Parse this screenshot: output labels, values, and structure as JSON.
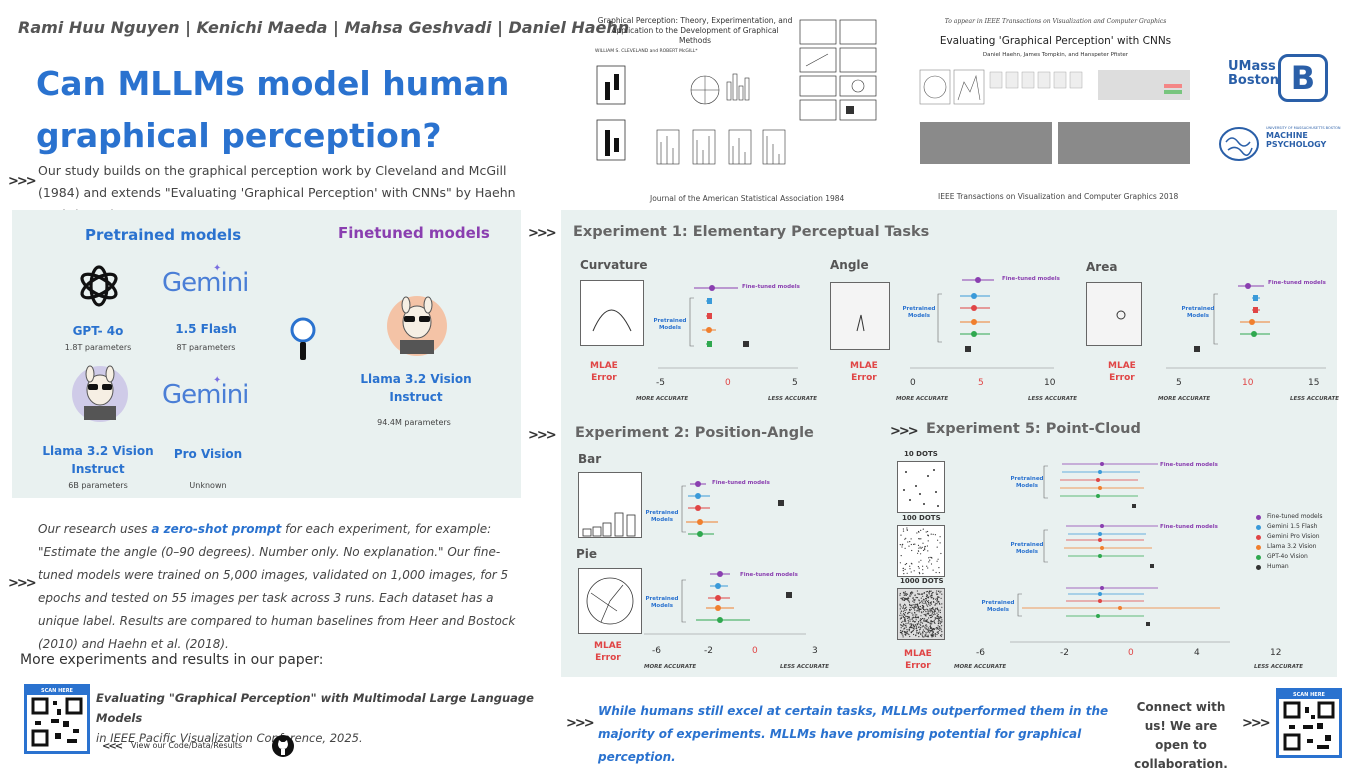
{
  "authors": "Rami Huu Nguyen | Kenichi Maeda | Mahsa Geshvadi | Daniel Haehn",
  "title": "Can MLLMs model human graphical perception?",
  "intro": "Our study builds on the graphical perception work by Cleveland and McGill (1984) and extends \"Evaluating 'Graphical Perception' with CNNs\" by Haehn et al. (2018)",
  "chevron": ">>>",
  "papers": {
    "p1_title": "Graphical Perception: Theory, Experimentation, and Application to the Development of Graphical Methods",
    "p1_authors": "WILLIAM S. CLEVELAND and ROBERT McGILL*",
    "p1_caption": "Journal of the American Statistical Association 1984",
    "p2_header": "To appear in IEEE Transactions on Visualization and Computer Graphics",
    "p2_title": "Evaluating 'Graphical Perception' with CNNs",
    "p2_authors": "Daniel Haehn, James Tompkin, and Hanspeter Pfister",
    "p2_caption": "IEEE Transactions on Visualization and Computer Graphics 2018"
  },
  "logos": {
    "umass": "UMass Boston",
    "umass_line1": "UMass",
    "umass_line2": "Boston",
    "mp_small": "UNIVERSITY OF MASSACHUSETTS BOSTON",
    "mp_line1": "MACHINE",
    "mp_line2": "PSYCHOLOGY"
  },
  "models": {
    "pretrained_heading": "Pretrained models",
    "finetuned_heading": "Finetuned models",
    "gemini_word": "Gemini",
    "gpt_name": "GPT- 4o",
    "gpt_params": "1.8T parameters",
    "flash_name": "1.5 Flash",
    "flash_params": "8T parameters",
    "llama_name": "Llama 3.2 Vision Instruct",
    "llama_params": "6B parameters",
    "pro_name": "Pro Vision",
    "pro_params": "Unknown",
    "ft_name": "Llama 3.2 Vision Instruct",
    "ft_params": "94.4M parameters"
  },
  "description_parts": {
    "a": "Our research uses ",
    "b": "a zero-shot prompt",
    "c": " for each experiment, for example: \"Estimate the angle (0–90 degrees). Number only. No explanation.\" Our fine-tuned models were trained on 5,000 images, validated on 1,000 images, for 5 epochs and tested on 55 images per task across 3 runs. Each dataset has a unique label. Results are compared to human baselines from Heer and Bostock (2010) and Haehn et al. (2018)."
  },
  "more_experiments": "More experiments and results in our paper:",
  "paper_ref": {
    "title": "Evaluating \"Graphical Perception\" with Multimodal Large Language Models",
    "venue": "in IEEE Pacific Visualization Conference, 2025."
  },
  "code_link": "View our Code/Data/Results",
  "code_chevron": "<<<",
  "scan_here": "SCAN HERE",
  "exp1": {
    "title": "Experiment 1: Elementary Perceptual Tasks",
    "tasks": [
      "Curvature",
      "Angle",
      "Area"
    ],
    "ticks": [
      [
        "-5",
        "0",
        "5"
      ],
      [
        "0",
        "5",
        "10"
      ],
      [
        "5",
        "10",
        "15"
      ]
    ]
  },
  "exp2": {
    "title": "Experiment 2: Position-Angle",
    "tasks": [
      "Bar",
      "Pie"
    ],
    "ticks": [
      "-6",
      "-2",
      "0",
      "3"
    ]
  },
  "exp5": {
    "title": "Experiment 5: Point-Cloud",
    "tasks": [
      "10 DOTS",
      "100 DOTS",
      "1000 DOTS"
    ],
    "ticks": [
      "-6",
      "-2",
      "0",
      "4",
      "12"
    ]
  },
  "axis_labels": {
    "mlae": "MLAE",
    "error": "Error",
    "more_accurate": "MORE ACCURATE",
    "less_accurate": "LESS ACCURATE",
    "finetuned": "Fine-tuned models",
    "pretrained": "Pretrained Models"
  },
  "legend": [
    {
      "label": "Fine-tuned models",
      "color": "#8a3fb0"
    },
    {
      "label": "Gemini 1.5 Flash",
      "color": "#3a9ad9"
    },
    {
      "label": "Gemini Pro Vision",
      "color": "#e04545"
    },
    {
      "label": "Llama 3.2 Vision",
      "color": "#f07f2e"
    },
    {
      "label": "GPT-4o Vision",
      "color": "#2fa84f"
    },
    {
      "label": "Human",
      "color": "#333333"
    }
  ],
  "conclusion": "While humans still excel at certain tasks, MLLMs outperformed them in the majority of experiments. MLLMs have promising potential for graphical perception.",
  "connect": "Connect with us! We are open to collaboration."
}
